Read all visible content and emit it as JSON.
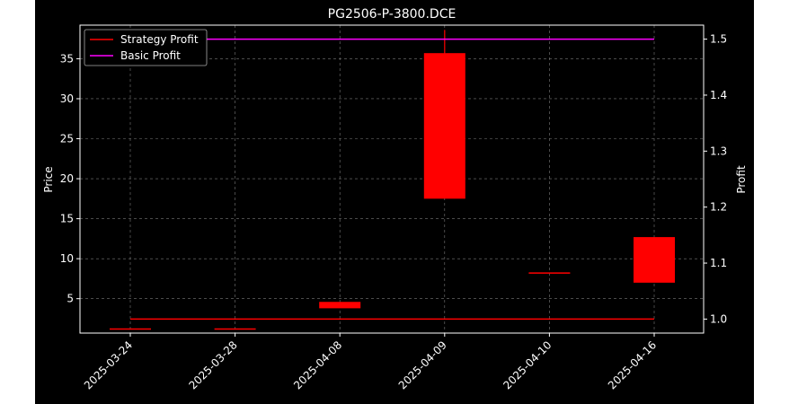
{
  "chart_data": {
    "type": "candlestick",
    "title": "PG2506-P-3800.DCE",
    "ylabel_left": "Price",
    "ylabel_right": "Profit",
    "categories": [
      "2025-03-24",
      "2025-03-28",
      "2025-04-08",
      "2025-04-09",
      "2025-04-10",
      "2025-04-16"
    ],
    "candles": [
      {
        "open": 1.2,
        "close": 1.2,
        "high": 1.2,
        "low": 1.2
      },
      {
        "open": 1.2,
        "close": 1.2,
        "high": 1.2,
        "low": 1.2
      },
      {
        "open": 4.6,
        "close": 3.8,
        "high": 4.6,
        "low": 3.8
      },
      {
        "open": 17.5,
        "close": 35.7,
        "high": 38.6,
        "low": 17.5
      },
      {
        "open": 8.2,
        "close": 8.2,
        "high": 8.2,
        "low": 8.2
      },
      {
        "open": 7.0,
        "close": 12.7,
        "high": 12.7,
        "low": 7.0
      }
    ],
    "series": [
      {
        "name": "Strategy Profit",
        "color": "#ff0000",
        "values": [
          1.0,
          1.0,
          1.0,
          1.0,
          1.0,
          1.0
        ]
      },
      {
        "name": "Basic Profit",
        "color": "#ff00ff",
        "values": [
          1.5,
          1.5,
          1.5,
          1.5,
          1.5,
          1.5
        ]
      }
    ],
    "candle_color": "#ff0000",
    "ylim_left": [
      0.7,
      39.2
    ],
    "ylim_right": [
      0.975,
      1.525
    ],
    "yticks_left": [
      5,
      10,
      15,
      20,
      25,
      30,
      35
    ],
    "yticks_right": [
      1.0,
      1.1,
      1.2,
      1.3,
      1.4,
      1.5
    ],
    "grid": true,
    "legend_position": "top-left",
    "background": "#000000"
  }
}
